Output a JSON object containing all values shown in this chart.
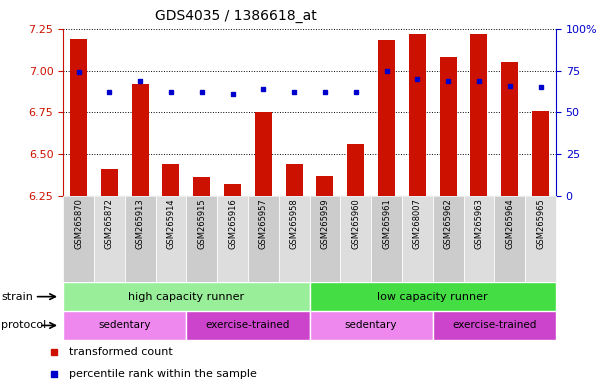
{
  "title": "GDS4035 / 1386618_at",
  "samples": [
    "GSM265870",
    "GSM265872",
    "GSM265913",
    "GSM265914",
    "GSM265915",
    "GSM265916",
    "GSM265957",
    "GSM265958",
    "GSM265959",
    "GSM265960",
    "GSM265961",
    "GSM268007",
    "GSM265962",
    "GSM265963",
    "GSM265964",
    "GSM265965"
  ],
  "bar_values": [
    7.19,
    6.41,
    6.92,
    6.44,
    6.36,
    6.32,
    6.75,
    6.44,
    6.37,
    6.56,
    7.18,
    7.22,
    7.08,
    7.22,
    7.05,
    6.76
  ],
  "dot_values": [
    74,
    62,
    69,
    62,
    62,
    61,
    64,
    62,
    62,
    62,
    75,
    70,
    69,
    69,
    66,
    65
  ],
  "ylim": [
    6.25,
    7.25
  ],
  "yticks": [
    6.25,
    6.5,
    6.75,
    7.0,
    7.25
  ],
  "right_yticks": [
    0,
    25,
    50,
    75,
    100
  ],
  "bar_color": "#cc1100",
  "dot_color": "#0000cc",
  "bar_bottom": 6.25,
  "strain_groups": [
    {
      "label": "high capacity runner",
      "start": 0,
      "end": 8,
      "color": "#99ee99"
    },
    {
      "label": "low capacity runner",
      "start": 8,
      "end": 16,
      "color": "#44dd44"
    }
  ],
  "protocol_groups": [
    {
      "label": "sedentary",
      "start": 0,
      "end": 4,
      "color": "#ee88ee"
    },
    {
      "label": "exercise-trained",
      "start": 4,
      "end": 8,
      "color": "#cc44cc"
    },
    {
      "label": "sedentary",
      "start": 8,
      "end": 12,
      "color": "#ee88ee"
    },
    {
      "label": "exercise-trained",
      "start": 12,
      "end": 16,
      "color": "#cc44cc"
    }
  ],
  "legend_items": [
    {
      "label": "transformed count",
      "color": "#cc1100"
    },
    {
      "label": "percentile rank within the sample",
      "color": "#0000cc"
    }
  ],
  "tick_color_left": "#cc1100",
  "tick_color_right": "#0000cc",
  "strain_label": "strain",
  "protocol_label": "protocol",
  "xtick_colors": [
    "#cccccc",
    "#bbbbbb",
    "#cccccc",
    "#bbbbbb",
    "#cccccc",
    "#bbbbbb",
    "#cccccc",
    "#bbbbbb",
    "#cccccc",
    "#bbbbbb",
    "#cccccc",
    "#bbbbbb",
    "#cccccc",
    "#bbbbbb",
    "#cccccc",
    "#bbbbbb"
  ]
}
